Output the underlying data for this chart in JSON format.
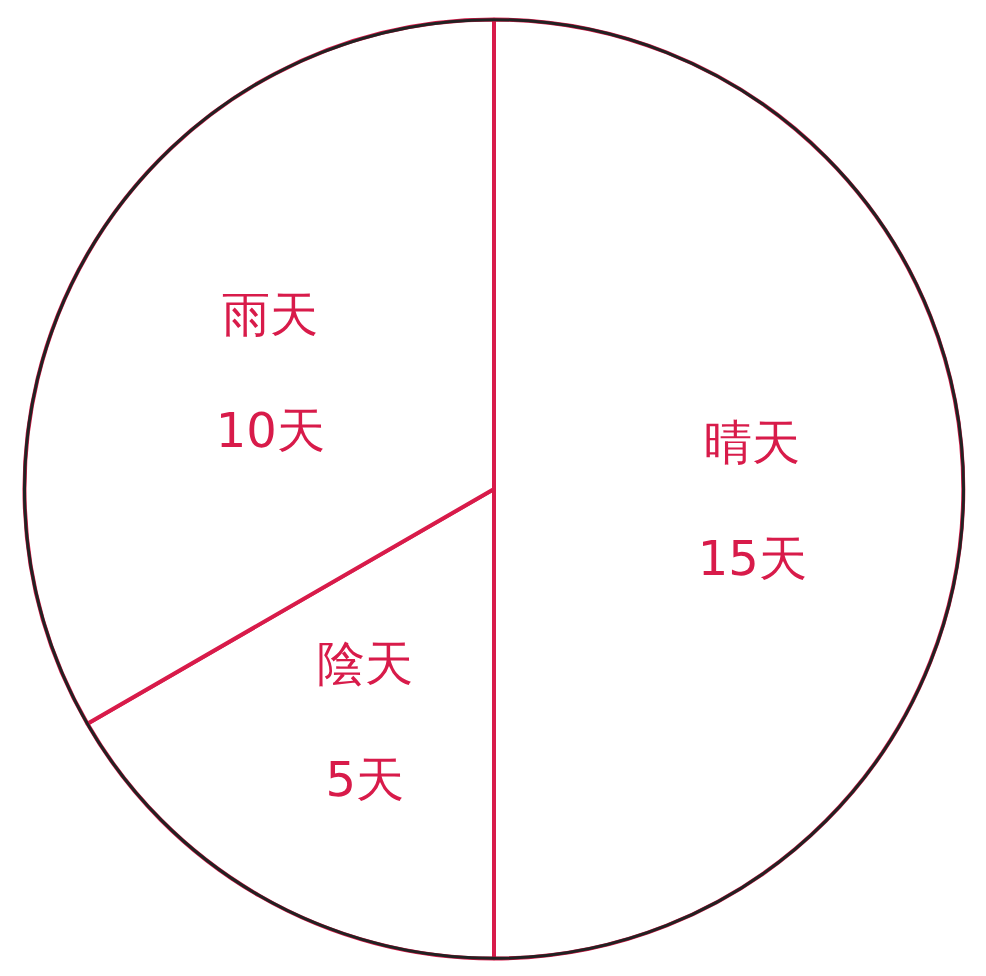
{
  "chart_data": {
    "type": "pie",
    "categories": [
      "晴天",
      "陰天",
      "雨天"
    ],
    "values": [
      15,
      5,
      10
    ],
    "value_labels": [
      "15天",
      "5天",
      "10天"
    ],
    "colors": [
      "#ffffff",
      "#ffffff",
      "#ffffff"
    ]
  }
}
